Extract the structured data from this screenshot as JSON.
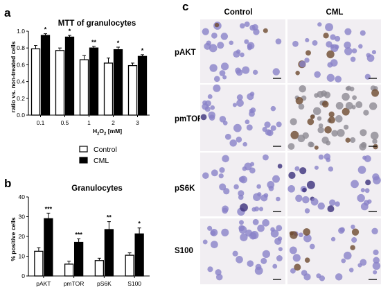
{
  "panels": {
    "a": "a",
    "b": "b",
    "c": "c"
  },
  "legend": {
    "control": "Control",
    "cml": "CML"
  },
  "colors": {
    "control_fill": "#ffffff",
    "cml_fill": "#000000",
    "micro_background": "#f1eef2",
    "stain_purple": "#8a82c8",
    "stain_brown": "#6e4a2e"
  },
  "chart_data": [
    {
      "type": "bar",
      "panel": "a",
      "title": "MTT of granulocytes",
      "xlabel": "H2O2 [mM]",
      "xlabel_main": "H",
      "xlabel_sub": "2",
      "xlabel_mid": "O",
      "xlabel_sub2": "2",
      "xlabel_rest": " [mM]",
      "ylabel": "ratio vs. non-treated cells",
      "ylim": [
        0,
        1.0
      ],
      "yticks": [
        "0.0",
        "0.2",
        "0.4",
        "0.6",
        "0.8",
        "1.0"
      ],
      "categories": [
        "0.1",
        "0.5",
        "1",
        "2",
        "3"
      ],
      "series": [
        {
          "name": "Control",
          "values": [
            0.79,
            0.77,
            0.66,
            0.62,
            0.59
          ],
          "errors": [
            0.04,
            0.03,
            0.05,
            0.06,
            0.03
          ]
        },
        {
          "name": "CML",
          "values": [
            0.95,
            0.93,
            0.8,
            0.78,
            0.7
          ],
          "errors": [
            0.02,
            0.02,
            0.02,
            0.03,
            0.02
          ]
        }
      ],
      "significance": [
        "*",
        "*",
        "**",
        "*",
        "*"
      ],
      "grid": false
    },
    {
      "type": "bar",
      "panel": "b",
      "title": "Granulocytes",
      "xlabel": "",
      "ylabel": "% positive cells",
      "ylim": [
        0,
        40
      ],
      "yticks": [
        "0",
        "10",
        "20",
        "30",
        "40"
      ],
      "categories": [
        "pAKT",
        "pmTOR",
        "pS6K",
        "S100"
      ],
      "series": [
        {
          "name": "Control",
          "values": [
            12.5,
            6.0,
            7.8,
            10.5
          ],
          "errors": [
            1.8,
            1.5,
            1.2,
            1.2
          ]
        },
        {
          "name": "CML",
          "values": [
            29.0,
            17.0,
            23.5,
            21.3
          ],
          "errors": [
            2.8,
            1.8,
            4.0,
            3.0
          ]
        }
      ],
      "significance": [
        "***",
        "***",
        "**",
        "*"
      ],
      "grid": false
    }
  ],
  "micrographs": {
    "columns": [
      "Control",
      "CML"
    ],
    "rows": [
      "pAKT",
      "pmTOR",
      "pS6K",
      "S100"
    ]
  }
}
